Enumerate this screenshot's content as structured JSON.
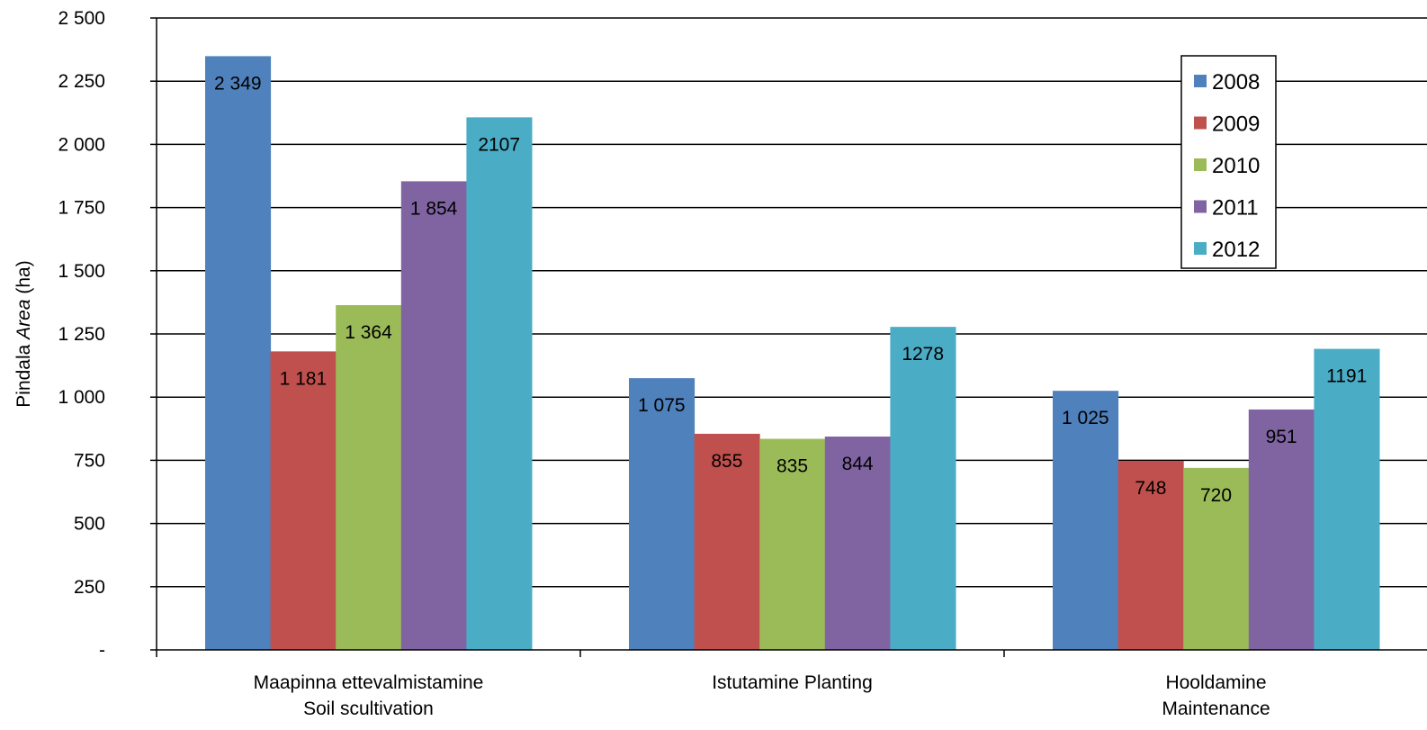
{
  "chart_data": {
    "type": "bar",
    "categories": [
      [
        "Maapinna ettevalmistamine",
        "Soil scultivation"
      ],
      [
        "Istutamine Planting"
      ],
      [
        "Hooldamine",
        "Maintenance"
      ]
    ],
    "series": [
      {
        "name": "2008",
        "color": "#4F81BD",
        "values": [
          2349,
          1075,
          1025
        ],
        "labels": [
          "2 349",
          "1 075",
          "1 025"
        ]
      },
      {
        "name": "2009",
        "color": "#C0504D",
        "values": [
          1181,
          855,
          748
        ],
        "labels": [
          "1 181",
          "855",
          "748"
        ]
      },
      {
        "name": "2010",
        "color": "#9BBB59",
        "values": [
          1364,
          835,
          720
        ],
        "labels": [
          "1 364",
          "835",
          "720"
        ]
      },
      {
        "name": "2011",
        "color": "#8064A2",
        "values": [
          1854,
          844,
          951
        ],
        "labels": [
          "1 854",
          "844",
          "951"
        ]
      },
      {
        "name": "2012",
        "color": "#4BACC6",
        "values": [
          2107,
          1278,
          1191
        ],
        "labels": [
          "2107",
          "1278",
          "1191"
        ]
      }
    ],
    "ylabel_plain": "Pindala ",
    "ylabel_italic": "Area",
    "ylabel_unit": " (ha)",
    "ylim": [
      0,
      2500
    ],
    "yticks": [
      0,
      250,
      500,
      750,
      1000,
      1250,
      1500,
      1750,
      2000,
      2250,
      2500
    ],
    "ytick_labels": [
      "-",
      "250",
      "500",
      "750",
      "1 000",
      "1 250",
      "1 500",
      "1 750",
      "2 000",
      "2 250",
      "2 500"
    ],
    "grid": true,
    "legend_position": "top-right"
  }
}
